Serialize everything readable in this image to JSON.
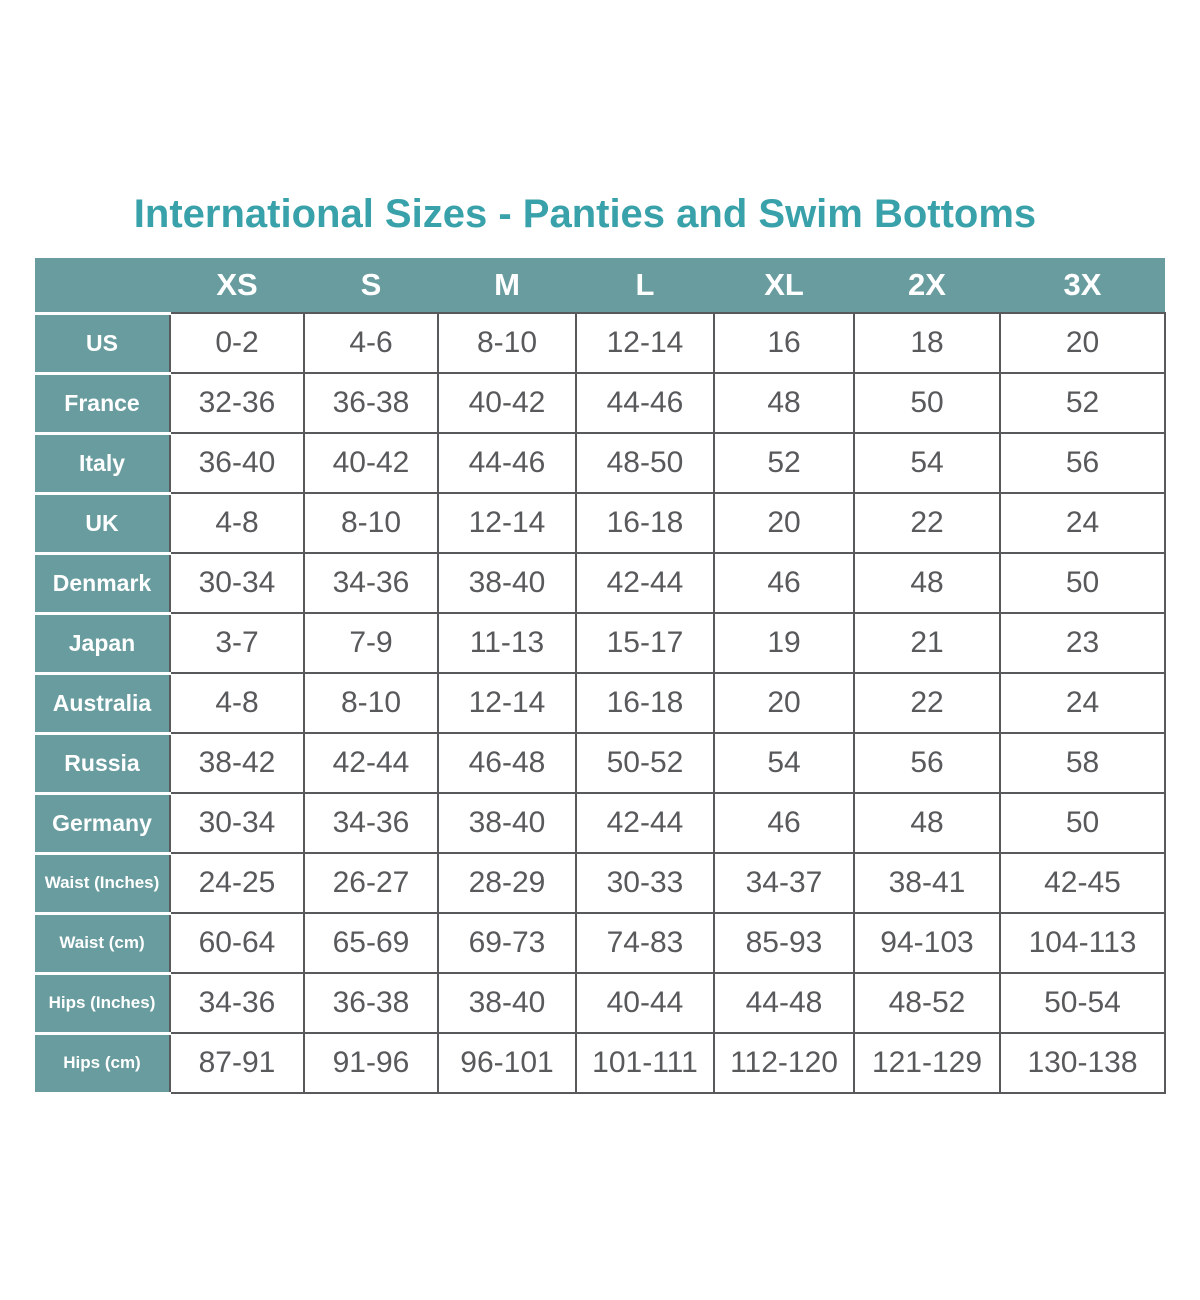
{
  "title": "International Sizes - Panties and Swim Bottoms",
  "colors": {
    "accent": "#38a1a9",
    "band": "#699c9e",
    "text": "#58595b",
    "border": "#58595b"
  },
  "chart_data": {
    "type": "table",
    "title": "International Sizes - Panties and Swim Bottoms",
    "columns": [
      "",
      "XS",
      "S",
      "M",
      "L",
      "XL",
      "2X",
      "3X"
    ],
    "rows": [
      {
        "label": "US",
        "values": [
          "0-2",
          "4-6",
          "8-10",
          "12-14",
          "16",
          "18",
          "20"
        ]
      },
      {
        "label": "France",
        "values": [
          "32-36",
          "36-38",
          "40-42",
          "44-46",
          "48",
          "50",
          "52"
        ]
      },
      {
        "label": "Italy",
        "values": [
          "36-40",
          "40-42",
          "44-46",
          "48-50",
          "52",
          "54",
          "56"
        ]
      },
      {
        "label": "UK",
        "values": [
          "4-8",
          "8-10",
          "12-14",
          "16-18",
          "20",
          "22",
          "24"
        ]
      },
      {
        "label": "Denmark",
        "values": [
          "30-34",
          "34-36",
          "38-40",
          "42-44",
          "46",
          "48",
          "50"
        ]
      },
      {
        "label": "Japan",
        "values": [
          "3-7",
          "7-9",
          "11-13",
          "15-17",
          "19",
          "21",
          "23"
        ]
      },
      {
        "label": "Australia",
        "values": [
          "4-8",
          "8-10",
          "12-14",
          "16-18",
          "20",
          "22",
          "24"
        ]
      },
      {
        "label": "Russia",
        "values": [
          "38-42",
          "42-44",
          "46-48",
          "50-52",
          "54",
          "56",
          "58"
        ]
      },
      {
        "label": "Germany",
        "values": [
          "30-34",
          "34-36",
          "38-40",
          "42-44",
          "46",
          "48",
          "50"
        ]
      },
      {
        "label": "Waist (Inches)",
        "values": [
          "24-25",
          "26-27",
          "28-29",
          "30-33",
          "34-37",
          "38-41",
          "42-45"
        ]
      },
      {
        "label": "Waist (cm)",
        "values": [
          "60-64",
          "65-69",
          "69-73",
          "74-83",
          "85-93",
          "94-103",
          "104-113"
        ]
      },
      {
        "label": "Hips (Inches)",
        "values": [
          "34-36",
          "36-38",
          "38-40",
          "40-44",
          "44-48",
          "48-52",
          "50-54"
        ]
      },
      {
        "label": "Hips (cm)",
        "values": [
          "87-91",
          "91-96",
          "96-101",
          "101-111",
          "112-120",
          "121-129",
          "130-138"
        ]
      }
    ]
  }
}
